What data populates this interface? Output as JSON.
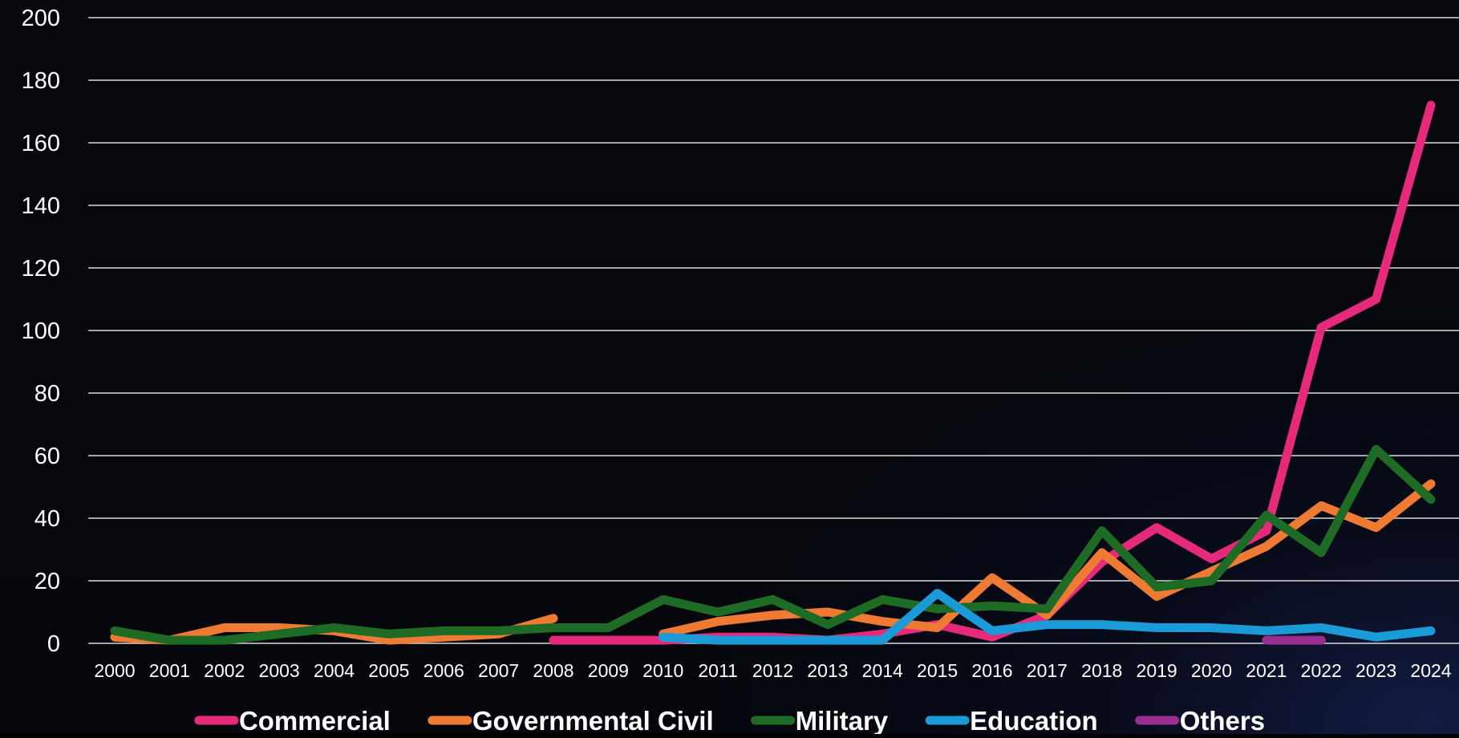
{
  "chart_data": {
    "type": "line",
    "title": "",
    "xlabel": "",
    "ylabel": "",
    "ylim": [
      0,
      200
    ],
    "y_ticks": [
      0,
      20,
      40,
      60,
      80,
      100,
      120,
      140,
      160,
      180,
      200
    ],
    "grid": true,
    "legend_position": "bottom",
    "categories": [
      "2000",
      "2001",
      "2002",
      "2003",
      "2004",
      "2005",
      "2006",
      "2007",
      "2008",
      "2009",
      "2010",
      "2011",
      "2012",
      "2013",
      "2014",
      "2015",
      "2016",
      "2017",
      "2018",
      "2019",
      "2020",
      "2021",
      "2022",
      "2023",
      "2024"
    ],
    "series": [
      {
        "name": "Commercial",
        "color": "#e62a7b",
        "values": [
          null,
          null,
          null,
          null,
          null,
          null,
          null,
          null,
          1,
          1,
          1,
          2,
          2,
          1,
          3,
          6,
          2,
          9,
          26,
          37,
          27,
          36,
          101,
          110,
          172
        ]
      },
      {
        "name": "Governmental Civil",
        "color": "#ee7a33",
        "values": [
          2,
          1,
          5,
          5,
          4,
          1,
          2,
          3,
          8,
          null,
          3,
          7,
          9,
          10,
          7,
          5,
          21,
          9,
          29,
          15,
          23,
          31,
          44,
          37,
          51
        ]
      },
      {
        "name": "Military",
        "color": "#1e6b26",
        "values": [
          4,
          1,
          1,
          3,
          5,
          3,
          4,
          4,
          5,
          5,
          14,
          10,
          14,
          6,
          14,
          11,
          12,
          11,
          36,
          18,
          20,
          41,
          29,
          62,
          46
        ]
      },
      {
        "name": "Education",
        "color": "#1a9bd7",
        "values": [
          null,
          null,
          null,
          null,
          null,
          null,
          null,
          null,
          null,
          null,
          2,
          1,
          1,
          1,
          1,
          16,
          4,
          6,
          6,
          5,
          5,
          4,
          5,
          2,
          4
        ]
      },
      {
        "name": "Others",
        "color": "#9b2f8f",
        "values": [
          null,
          null,
          null,
          null,
          null,
          null,
          null,
          null,
          null,
          null,
          null,
          null,
          null,
          null,
          null,
          null,
          null,
          null,
          null,
          null,
          null,
          1,
          1,
          null,
          null
        ]
      }
    ]
  }
}
